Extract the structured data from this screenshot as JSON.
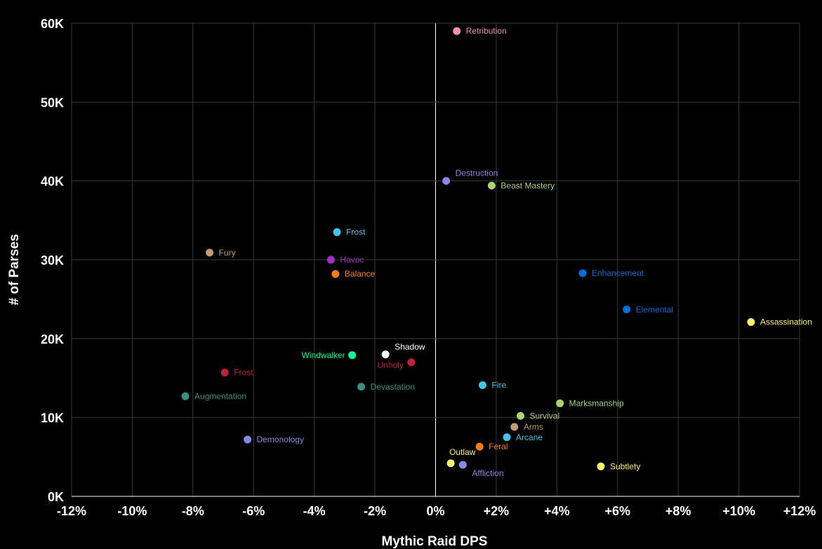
{
  "chart_data": {
    "type": "scatter",
    "title": "",
    "xlabel": "Mythic Raid DPS",
    "ylabel": "# of Parses",
    "xlim": [
      -12,
      12
    ],
    "ylim": [
      0,
      60000
    ],
    "x_ticks": [
      {
        "value": -12,
        "label": "-12%"
      },
      {
        "value": -10,
        "label": "-10%"
      },
      {
        "value": -8,
        "label": "-8%"
      },
      {
        "value": -6,
        "label": "-6%"
      },
      {
        "value": -4,
        "label": "-4%"
      },
      {
        "value": -2,
        "label": "-2%"
      },
      {
        "value": 0,
        "label": "0%"
      },
      {
        "value": 2,
        "label": "+2%"
      },
      {
        "value": 4,
        "label": "+4%"
      },
      {
        "value": 6,
        "label": "+6%"
      },
      {
        "value": 8,
        "label": "+8%"
      },
      {
        "value": 10,
        "label": "+10%"
      },
      {
        "value": 12,
        "label": "+12%"
      }
    ],
    "y_ticks": [
      {
        "value": 0,
        "label": "0K"
      },
      {
        "value": 10000,
        "label": "10K"
      },
      {
        "value": 20000,
        "label": "20K"
      },
      {
        "value": 30000,
        "label": "30K"
      },
      {
        "value": 40000,
        "label": "40K"
      },
      {
        "value": 50000,
        "label": "50K"
      },
      {
        "value": 60000,
        "label": "60K"
      }
    ],
    "grid": true,
    "points": [
      {
        "label": "Retribution",
        "x": 0.7,
        "y": 59000,
        "color": "#F48CBA",
        "label_pos": "right"
      },
      {
        "label": "Destruction",
        "x": 0.35,
        "y": 40000,
        "color": "#8788EE",
        "label_pos": "above-right"
      },
      {
        "label": "Beast Mastery",
        "x": 1.85,
        "y": 39400,
        "color": "#AAD372",
        "label_pos": "right"
      },
      {
        "label": "Frost",
        "x": -3.25,
        "y": 33500,
        "color": "#3FC7EB",
        "label_pos": "right"
      },
      {
        "label": "Fury",
        "x": -7.45,
        "y": 30900,
        "color": "#C69B6D",
        "label_pos": "right"
      },
      {
        "label": "Havoc",
        "x": -3.45,
        "y": 30000,
        "color": "#A330C9",
        "label_pos": "right"
      },
      {
        "label": "Balance",
        "x": -3.3,
        "y": 28200,
        "color": "#FF7C0A",
        "label_pos": "right"
      },
      {
        "label": "Enhancement",
        "x": 4.85,
        "y": 28300,
        "color": "#0070DD",
        "label_pos": "right"
      },
      {
        "label": "Elemental",
        "x": 6.3,
        "y": 23700,
        "color": "#0070DD",
        "label_pos": "right"
      },
      {
        "label": "Assassination",
        "x": 10.4,
        "y": 22100,
        "color": "#FFF468",
        "label_pos": "right"
      },
      {
        "label": "Windwalker",
        "x": -2.75,
        "y": 17900,
        "color": "#00FF98",
        "label_pos": "left"
      },
      {
        "label": "Shadow",
        "x": -1.65,
        "y": 18000,
        "color": "#FFFFFF",
        "label_pos": "above-right"
      },
      {
        "label": "Unholy",
        "x": -0.8,
        "y": 17000,
        "color": "#C41E3A",
        "label_pos": "below-left"
      },
      {
        "label": "Frost",
        "x": -6.95,
        "y": 15700,
        "color": "#C41E3A",
        "label_pos": "right"
      },
      {
        "label": "Devastation",
        "x": -2.45,
        "y": 13900,
        "color": "#33937F",
        "label_pos": "right"
      },
      {
        "label": "Fire",
        "x": 1.55,
        "y": 14100,
        "color": "#3FC7EB",
        "label_pos": "right"
      },
      {
        "label": "Augmentation",
        "x": -8.25,
        "y": 12700,
        "color": "#33937F",
        "label_pos": "right"
      },
      {
        "label": "Marksmanship",
        "x": 4.1,
        "y": 11800,
        "color": "#AAD372",
        "label_pos": "right"
      },
      {
        "label": "Survival",
        "x": 2.8,
        "y": 10200,
        "color": "#AAD372",
        "label_pos": "right"
      },
      {
        "label": "Arms",
        "x": 2.6,
        "y": 8800,
        "color": "#C69B6D",
        "label_pos": "right"
      },
      {
        "label": "Arcane",
        "x": 2.35,
        "y": 7500,
        "color": "#3FC7EB",
        "label_pos": "right"
      },
      {
        "label": "Demonology",
        "x": -6.2,
        "y": 7200,
        "color": "#8788EE",
        "label_pos": "right"
      },
      {
        "label": "Feral",
        "x": 1.45,
        "y": 6300,
        "color": "#FF7C0A",
        "label_pos": "right"
      },
      {
        "label": "Outlaw",
        "x": 0.5,
        "y": 4200,
        "color": "#FFF468",
        "label_pos": "above"
      },
      {
        "label": "Affliction",
        "x": 0.9,
        "y": 4000,
        "color": "#8788EE",
        "label_pos": "below-right"
      },
      {
        "label": "Subtlety",
        "x": 5.45,
        "y": 3800,
        "color": "#FFF468",
        "label_pos": "right"
      }
    ]
  }
}
